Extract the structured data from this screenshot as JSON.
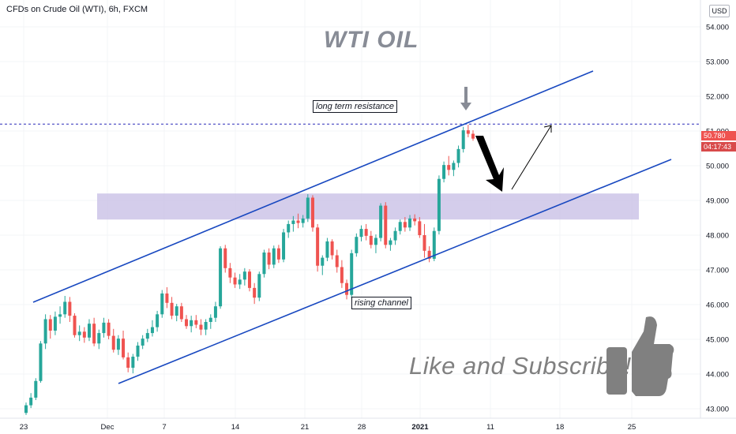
{
  "header": {
    "title": "CFDs on Crude Oil (WTI), 6h, FXCM",
    "currency": "USD"
  },
  "annotations": {
    "main_title": "WTI OIL",
    "resistance_label": "long term resistance",
    "channel_label": "rising channel",
    "cta": "Like and Subscribe!"
  },
  "price_tags": {
    "last_price": "50.780",
    "countdown": "04:17:43"
  },
  "colors": {
    "up": "#26a69a",
    "down": "#ef5350",
    "channel": "#1848c0",
    "zone": "#c9c0e6",
    "resistance_dash": "#2a2ab8",
    "thumb_icon": "#808080"
  },
  "icons": {
    "thumbs_up": "thumbs-up-icon",
    "down_arrow": "down-arrow-icon"
  },
  "chart_data": {
    "type": "candlestick",
    "title": "CFDs on Crude Oil (WTI), 6h, FXCM",
    "y_axis_side": "right",
    "ylim": [
      42.8,
      54.3
    ],
    "y_ticks": [
      "43.000",
      "44.000",
      "45.000",
      "46.000",
      "47.000",
      "48.000",
      "49.000",
      "50.000",
      "51.000",
      "52.000",
      "53.000",
      "54.000"
    ],
    "x_ticks": [
      "23",
      "Dec",
      "7",
      "14",
      "21",
      "28",
      "2021",
      "11",
      "18",
      "25"
    ],
    "resistance_level": 51.2,
    "zone": [
      48.45,
      49.2
    ],
    "last_price": 50.78,
    "series": [
      {
        "name": "OHLC",
        "candles": [
          [
            42.88,
            43.18,
            42.82,
            43.1
          ],
          [
            43.1,
            43.45,
            43.02,
            43.32
          ],
          [
            43.32,
            43.88,
            43.25,
            43.8
          ],
          [
            43.8,
            44.95,
            43.75,
            44.88
          ],
          [
            44.88,
            45.72,
            44.72,
            45.58
          ],
          [
            45.58,
            45.7,
            45.02,
            45.25
          ],
          [
            45.25,
            45.8,
            45.12,
            45.65
          ],
          [
            45.65,
            45.95,
            45.45,
            45.72
          ],
          [
            45.72,
            46.25,
            45.62,
            46.08
          ],
          [
            46.08,
            46.22,
            45.5,
            45.68
          ],
          [
            45.68,
            45.75,
            45.05,
            45.12
          ],
          [
            45.12,
            45.4,
            44.95,
            45.22
          ],
          [
            45.22,
            45.35,
            44.9,
            45.05
          ],
          [
            45.05,
            45.58,
            44.95,
            45.45
          ],
          [
            45.45,
            45.62,
            44.8,
            44.88
          ],
          [
            44.88,
            45.28,
            44.72,
            45.18
          ],
          [
            45.18,
            45.62,
            45.05,
            45.48
          ],
          [
            45.48,
            45.58,
            45.0,
            45.1
          ],
          [
            45.1,
            45.3,
            44.62,
            44.7
          ],
          [
            44.7,
            45.12,
            44.55,
            45.02
          ],
          [
            45.02,
            45.25,
            44.42,
            44.48
          ],
          [
            44.48,
            44.62,
            44.05,
            44.18
          ],
          [
            44.18,
            44.58,
            44.02,
            44.5
          ],
          [
            44.5,
            44.92,
            44.38,
            44.82
          ],
          [
            44.82,
            45.12,
            44.72,
            45.02
          ],
          [
            45.02,
            45.3,
            44.92,
            45.18
          ],
          [
            45.18,
            45.55,
            45.08,
            45.35
          ],
          [
            45.35,
            45.82,
            45.22,
            45.72
          ],
          [
            45.72,
            46.42,
            45.62,
            46.32
          ],
          [
            46.32,
            46.5,
            45.9,
            46.05
          ],
          [
            46.05,
            46.22,
            45.58,
            45.68
          ],
          [
            45.68,
            46.02,
            45.52,
            45.95
          ],
          [
            45.95,
            46.05,
            45.5,
            45.58
          ],
          [
            45.58,
            45.7,
            45.3,
            45.38
          ],
          [
            45.38,
            45.68,
            45.2,
            45.55
          ],
          [
            45.55,
            45.7,
            45.32,
            45.42
          ],
          [
            45.42,
            45.58,
            45.12,
            45.28
          ],
          [
            45.28,
            45.58,
            45.12,
            45.5
          ],
          [
            45.5,
            45.72,
            45.3,
            45.62
          ],
          [
            45.62,
            46.08,
            45.5,
            45.95
          ],
          [
            45.95,
            47.68,
            45.88,
            47.62
          ],
          [
            47.62,
            47.72,
            46.92,
            47.05
          ],
          [
            47.05,
            47.2,
            46.62,
            46.78
          ],
          [
            46.78,
            46.92,
            46.48,
            46.58
          ],
          [
            46.58,
            46.88,
            46.45,
            46.72
          ],
          [
            46.72,
            47.05,
            46.55,
            46.95
          ],
          [
            46.95,
            47.02,
            46.38,
            46.48
          ],
          [
            46.48,
            46.62,
            46.02,
            46.2
          ],
          [
            46.2,
            46.95,
            46.1,
            46.88
          ],
          [
            46.88,
            47.58,
            46.78,
            47.5
          ],
          [
            47.5,
            47.62,
            47.02,
            47.15
          ],
          [
            47.15,
            47.7,
            47.05,
            47.62
          ],
          [
            47.62,
            47.72,
            47.2,
            47.3
          ],
          [
            47.3,
            48.18,
            47.22,
            48.08
          ],
          [
            48.08,
            48.42,
            47.92,
            48.32
          ],
          [
            48.32,
            48.55,
            48.1,
            48.42
          ],
          [
            48.42,
            48.62,
            48.2,
            48.35
          ],
          [
            48.35,
            48.58,
            48.22,
            48.48
          ],
          [
            48.48,
            49.18,
            48.38,
            49.08
          ],
          [
            49.08,
            49.15,
            48.1,
            48.22
          ],
          [
            48.22,
            48.32,
            46.95,
            47.12
          ],
          [
            47.12,
            47.42,
            46.85,
            47.35
          ],
          [
            47.35,
            47.92,
            47.25,
            47.82
          ],
          [
            47.82,
            47.88,
            47.3,
            47.42
          ],
          [
            47.42,
            47.58,
            46.92,
            47.08
          ],
          [
            47.08,
            47.28,
            46.48,
            46.62
          ],
          [
            46.62,
            46.72,
            46.15,
            46.28
          ],
          [
            46.28,
            47.58,
            46.18,
            47.48
          ],
          [
            47.48,
            48.05,
            47.38,
            47.95
          ],
          [
            47.95,
            48.28,
            47.82,
            48.18
          ],
          [
            48.18,
            48.32,
            47.85,
            47.98
          ],
          [
            47.98,
            48.12,
            47.62,
            47.72
          ],
          [
            47.72,
            48.02,
            47.48,
            47.92
          ],
          [
            47.92,
            48.92,
            47.82,
            48.85
          ],
          [
            48.85,
            48.95,
            47.62,
            47.72
          ],
          [
            47.72,
            47.92,
            47.55,
            47.85
          ],
          [
            47.85,
            48.22,
            47.72,
            48.12
          ],
          [
            48.12,
            48.45,
            48.02,
            48.38
          ],
          [
            48.38,
            48.52,
            48.1,
            48.22
          ],
          [
            48.22,
            48.58,
            48.12,
            48.48
          ],
          [
            48.48,
            48.6,
            48.28,
            48.4
          ],
          [
            48.4,
            48.52,
            47.92,
            48.0
          ],
          [
            48.0,
            48.32,
            47.35,
            47.55
          ],
          [
            47.55,
            47.68,
            47.22,
            47.32
          ],
          [
            47.32,
            48.22,
            47.25,
            48.12
          ],
          [
            48.12,
            49.72,
            48.02,
            49.62
          ],
          [
            49.62,
            50.12,
            49.52,
            50.02
          ],
          [
            50.02,
            50.28,
            49.72,
            49.88
          ],
          [
            49.88,
            50.15,
            49.7,
            50.08
          ],
          [
            50.08,
            50.58,
            49.95,
            50.48
          ],
          [
            50.48,
            51.12,
            50.38,
            51.02
          ],
          [
            51.02,
            51.18,
            50.82,
            50.92
          ],
          [
            50.92,
            51.02,
            50.72,
            50.78
          ]
        ]
      }
    ]
  }
}
